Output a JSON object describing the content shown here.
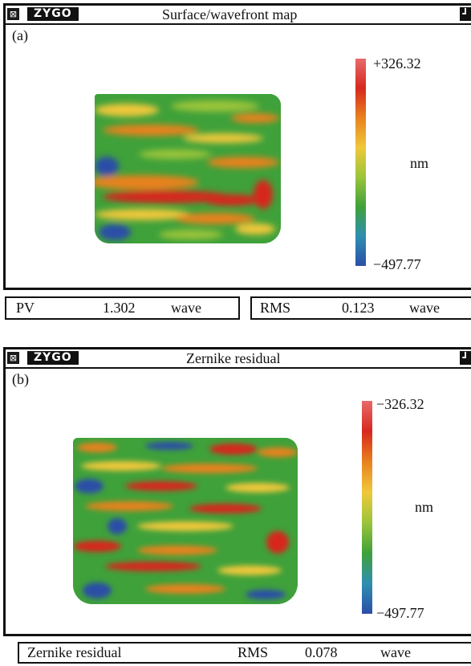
{
  "panels": [
    {
      "logo": "ZYGO",
      "title": "Surface/wavefront map",
      "label": "(a)",
      "colorbar": {
        "max": "+326.32",
        "min": "−497.77",
        "unit": "nm"
      },
      "status": {
        "pv_label": "PV",
        "pv_value": "1.302",
        "pv_unit": "wave",
        "rms_label": "RMS",
        "rms_value": "0.123",
        "rms_unit": "wave"
      }
    },
    {
      "logo": "ZYGO",
      "title": "Zernike residual",
      "label": "(b)",
      "colorbar": {
        "max": "−326.32",
        "min": "−497.77",
        "unit": "nm"
      },
      "status": {
        "name": "Zernike residual",
        "rms_label": "RMS",
        "rms_value": "0.078",
        "rms_unit": "wave"
      }
    }
  ],
  "colors": {
    "scale": [
      "#2b4ea8",
      "#2f8fb0",
      "#3fa13a",
      "#9bc43a",
      "#f0c83a",
      "#e8821e",
      "#d7281e",
      "#e86a6a"
    ],
    "frame": "#111111"
  },
  "icons": {
    "system_menu": "system-menu-icon",
    "corner": "window-corner-icon"
  }
}
